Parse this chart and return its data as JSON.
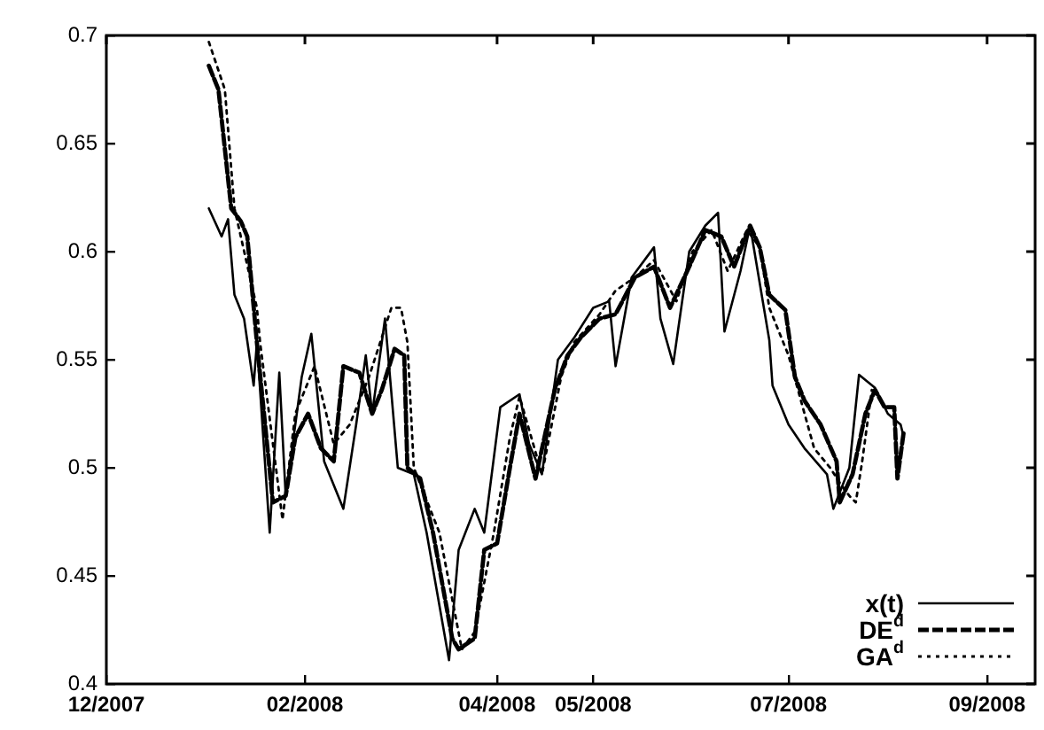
{
  "chart_data": {
    "type": "line",
    "xlim": [
      "2007-12-01",
      "2008-09-16"
    ],
    "ylim": [
      0.4,
      0.7
    ],
    "xticks": [
      {
        "value": "2007-12-01",
        "label": "12/2007"
      },
      {
        "value": "2008-02-01",
        "label": "02/2008"
      },
      {
        "value": "2008-04-01",
        "label": "04/2008"
      },
      {
        "value": "2008-05-01",
        "label": "05/2008"
      },
      {
        "value": "2008-07-01",
        "label": "07/2008"
      },
      {
        "value": "2008-09-01",
        "label": "09/2008"
      }
    ],
    "yticks": [
      0.4,
      0.45,
      0.5,
      0.55,
      0.6,
      0.65,
      0.7
    ],
    "grid": false,
    "legend": "bottom right",
    "marker": "none",
    "series": [
      {
        "name": "x(t)",
        "color": "#000000",
        "line_style": "solid",
        "x": [
          "2008-01-02",
          "2008-01-06",
          "2008-01-08",
          "2008-01-10",
          "2008-01-13",
          "2008-01-16",
          "2008-01-17",
          "2008-01-21",
          "2008-01-24",
          "2008-01-26",
          "2008-01-31",
          "2008-02-03",
          "2008-02-07",
          "2008-02-13",
          "2008-02-17",
          "2008-02-20",
          "2008-02-22",
          "2008-02-26",
          "2008-03-01",
          "2008-03-06",
          "2008-03-10",
          "2008-03-17",
          "2008-03-20",
          "2008-03-25",
          "2008-03-28",
          "2008-04-02",
          "2008-04-08",
          "2008-04-11",
          "2008-04-15",
          "2008-04-20",
          "2008-04-25",
          "2008-05-01",
          "2008-05-06",
          "2008-05-08",
          "2008-05-13",
          "2008-05-20",
          "2008-05-22",
          "2008-05-26",
          "2008-05-31",
          "2008-06-05",
          "2008-06-09",
          "2008-06-11",
          "2008-06-16",
          "2008-06-19",
          "2008-06-25",
          "2008-06-26",
          "2008-07-01",
          "2008-07-06",
          "2008-07-13",
          "2008-07-15",
          "2008-07-20",
          "2008-07-23",
          "2008-07-28",
          "2008-08-01",
          "2008-08-05",
          "2008-08-06"
        ],
        "values": [
          0.62,
          0.607,
          0.615,
          0.58,
          0.569,
          0.538,
          0.558,
          0.47,
          0.544,
          0.487,
          0.542,
          0.562,
          0.503,
          0.481,
          0.52,
          0.552,
          0.525,
          0.569,
          0.5,
          0.497,
          0.47,
          0.411,
          0.462,
          0.481,
          0.47,
          0.528,
          0.534,
          0.511,
          0.497,
          0.55,
          0.56,
          0.574,
          0.577,
          0.547,
          0.588,
          0.602,
          0.569,
          0.548,
          0.6,
          0.612,
          0.618,
          0.563,
          0.591,
          0.612,
          0.559,
          0.538,
          0.52,
          0.509,
          0.497,
          0.481,
          0.5,
          0.543,
          0.537,
          0.525,
          0.52,
          0.514
        ]
      },
      {
        "name": "DE$^{d}$",
        "color": "#000000",
        "line_style": "dashed",
        "x": [
          "2008-01-02",
          "2008-01-05",
          "2008-01-09",
          "2008-01-12",
          "2008-01-14",
          "2008-01-17",
          "2008-01-22",
          "2008-01-26",
          "2008-01-29",
          "2008-02-02",
          "2008-02-06",
          "2008-02-10",
          "2008-02-13",
          "2008-02-18",
          "2008-02-22",
          "2008-02-25",
          "2008-02-29",
          "2008-03-03",
          "2008-03-04",
          "2008-03-08",
          "2008-03-12",
          "2008-03-18",
          "2008-03-20",
          "2008-03-25",
          "2008-03-28",
          "2008-04-01",
          "2008-04-05",
          "2008-04-08",
          "2008-04-13",
          "2008-04-19",
          "2008-04-23",
          "2008-04-27",
          "2008-05-03",
          "2008-05-08",
          "2008-05-14",
          "2008-05-20",
          "2008-05-25",
          "2008-05-31",
          "2008-06-05",
          "2008-06-10",
          "2008-06-14",
          "2008-06-19",
          "2008-06-22",
          "2008-06-25",
          "2008-06-30",
          "2008-07-03",
          "2008-07-06",
          "2008-07-11",
          "2008-07-16",
          "2008-07-17",
          "2008-07-21",
          "2008-07-25",
          "2008-07-28",
          "2008-07-31",
          "2008-08-03",
          "2008-08-04",
          "2008-08-06"
        ],
        "values": [
          0.686,
          0.675,
          0.62,
          0.614,
          0.607,
          0.558,
          0.484,
          0.487,
          0.514,
          0.525,
          0.509,
          0.503,
          0.547,
          0.544,
          0.525,
          0.536,
          0.555,
          0.552,
          0.5,
          0.495,
          0.47,
          0.421,
          0.416,
          0.421,
          0.462,
          0.465,
          0.5,
          0.525,
          0.495,
          0.536,
          0.552,
          0.56,
          0.569,
          0.571,
          0.588,
          0.593,
          0.574,
          0.593,
          0.61,
          0.607,
          0.593,
          0.612,
          0.602,
          0.58,
          0.573,
          0.542,
          0.531,
          0.52,
          0.503,
          0.484,
          0.497,
          0.525,
          0.536,
          0.528,
          0.528,
          0.495,
          0.517
        ]
      },
      {
        "name": "GA$^{d}$",
        "color": "#000000",
        "line_style": "dotted",
        "x": [
          "2008-01-02",
          "2008-01-07",
          "2008-01-10",
          "2008-01-17",
          "2008-01-18",
          "2008-01-25",
          "2008-01-29",
          "2008-02-04",
          "2008-02-10",
          "2008-02-15",
          "2008-02-21",
          "2008-02-28",
          "2008-03-02",
          "2008-03-04",
          "2008-03-06",
          "2008-03-14",
          "2008-03-21",
          "2008-03-25",
          "2008-03-31",
          "2008-04-05",
          "2008-04-08",
          "2008-04-15",
          "2008-04-21",
          "2008-04-25",
          "2008-05-03",
          "2008-05-08",
          "2008-05-14",
          "2008-05-20",
          "2008-05-27",
          "2008-06-01",
          "2008-06-07",
          "2008-06-12",
          "2008-06-18",
          "2008-06-22",
          "2008-06-25",
          "2008-07-01",
          "2008-07-06",
          "2008-07-09",
          "2008-07-14",
          "2008-07-17",
          "2008-07-20",
          "2008-07-22",
          "2008-07-24",
          "2008-07-27"
        ],
        "values": [
          0.697,
          0.675,
          0.62,
          0.574,
          0.558,
          0.476,
          0.525,
          0.547,
          0.511,
          0.52,
          0.542,
          0.574,
          0.574,
          0.558,
          0.5,
          0.47,
          0.416,
          0.424,
          0.47,
          0.514,
          0.533,
          0.497,
          0.542,
          0.558,
          0.571,
          0.582,
          0.588,
          0.596,
          0.577,
          0.6,
          0.61,
          0.591,
          0.61,
          0.602,
          0.574,
          0.552,
          0.525,
          0.509,
          0.5,
          0.493,
          0.487,
          0.484,
          0.503,
          0.536
        ]
      }
    ]
  }
}
